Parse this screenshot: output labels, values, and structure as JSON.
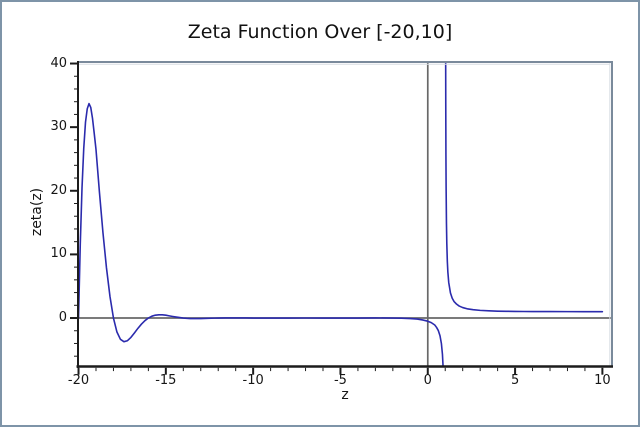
{
  "window": {
    "background": "#ffffff",
    "border_color": "#7e94a8"
  },
  "chart_data": {
    "type": "line",
    "title": "Zeta Function Over [-20,10]",
    "xlabel": "z",
    "ylabel": "zeta(z)",
    "xlim": [
      -20.03,
      10.55
    ],
    "ylim": [
      -7.62,
      40.24
    ],
    "grid": false,
    "legend": "none",
    "x_ticks": [
      -20,
      -15,
      -10,
      -5,
      0,
      5,
      10
    ],
    "x_tick_labels": [
      "-20",
      "-15",
      "-10",
      "-5",
      "0",
      "5",
      "10"
    ],
    "x_minor_step": 1,
    "y_ticks": [
      0,
      10,
      20,
      30,
      40
    ],
    "y_tick_labels": [
      "0",
      "10",
      "20",
      "30",
      "40"
    ],
    "y_minor_step": 2,
    "y_minor_min": -6,
    "zero_lines": true,
    "line_color": "#2b2bad",
    "axis_color": "#1c1c1c",
    "frame_color": "#7a8a9b",
    "frame_highlight": "#d9dee4",
    "zero_line_color": "#686868",
    "series": [
      {
        "name": "zeta(z)",
        "pole_at": 1,
        "segments": [
          [
            [
              -20.0,
              0.0
            ],
            [
              -19.9,
              11.6
            ],
            [
              -19.8,
              20.5
            ],
            [
              -19.7,
              26.7
            ],
            [
              -19.6,
              30.8
            ],
            [
              -19.5,
              32.9
            ],
            [
              -19.4,
              33.7
            ],
            [
              -19.3,
              33.1
            ],
            [
              -19.2,
              31.4
            ],
            [
              -19.1,
              29.0
            ],
            [
              -19.0,
              26.5
            ],
            [
              -18.8,
              19.7
            ],
            [
              -18.6,
              13.4
            ],
            [
              -18.4,
              7.9
            ],
            [
              -18.2,
              3.4
            ],
            [
              -18.0,
              0.0
            ],
            [
              -17.8,
              -2.2
            ],
            [
              -17.6,
              -3.35
            ],
            [
              -17.4,
              -3.72
            ],
            [
              -17.2,
              -3.57
            ],
            [
              -17.0,
              -3.05
            ],
            [
              -16.8,
              -2.35
            ],
            [
              -16.6,
              -1.62
            ],
            [
              -16.4,
              -0.97
            ],
            [
              -16.2,
              -0.42
            ],
            [
              -16.0,
              0.0
            ],
            [
              -15.8,
              0.29
            ],
            [
              -15.6,
              0.45
            ],
            [
              -15.4,
              0.51
            ],
            [
              -15.2,
              0.51
            ],
            [
              -15.0,
              0.44
            ],
            [
              -14.8,
              0.34
            ],
            [
              -14.6,
              0.24
            ],
            [
              -14.4,
              0.15
            ],
            [
              -14.2,
              0.07
            ],
            [
              -14.0,
              0.0
            ],
            [
              -13.8,
              -0.05
            ],
            [
              -13.6,
              -0.08
            ],
            [
              -13.4,
              -0.092
            ],
            [
              -13.2,
              -0.091
            ],
            [
              -13.0,
              -0.083
            ],
            [
              -12.6,
              -0.05
            ],
            [
              -12.2,
              -0.018
            ],
            [
              -12.0,
              0.0
            ],
            [
              -11.6,
              0.015
            ],
            [
              -11.0,
              0.021
            ],
            [
              -10.4,
              0.01
            ],
            [
              -10.0,
              0.0
            ],
            [
              -9.5,
              -0.006
            ],
            [
              -9.0,
              -0.008
            ],
            [
              -8.5,
              -0.005
            ],
            [
              -8.0,
              0.0
            ],
            [
              -7.0,
              0.004
            ],
            [
              -6.0,
              0.0
            ],
            [
              -5.0,
              -0.004
            ],
            [
              -4.0,
              0.0
            ],
            [
              -3.0,
              0.008
            ],
            [
              -2.0,
              0.0
            ],
            [
              -1.5,
              -0.03
            ],
            [
              -1.0,
              -0.083
            ],
            [
              -0.6,
              -0.17
            ],
            [
              -0.3,
              -0.3
            ],
            [
              0.0,
              -0.5
            ],
            [
              0.2,
              -0.72
            ],
            [
              0.4,
              -1.1
            ],
            [
              0.5,
              -1.46
            ],
            [
              0.6,
              -1.95
            ],
            [
              0.7,
              -2.78
            ],
            [
              0.78,
              -4.0
            ],
            [
              0.84,
              -5.7
            ],
            [
              0.88,
              -7.8
            ],
            [
              0.9,
              -9.4
            ]
          ],
          [
            [
              1.022,
              46.0
            ],
            [
              1.025,
              40.5
            ],
            [
              1.03,
              33.9
            ],
            [
              1.04,
              25.6
            ],
            [
              1.05,
              20.6
            ],
            [
              1.07,
              14.9
            ],
            [
              1.09,
              11.7
            ],
            [
              1.12,
              8.9
            ],
            [
              1.15,
              7.25
            ],
            [
              1.2,
              5.59
            ],
            [
              1.3,
              3.93
            ],
            [
              1.4,
              3.11
            ],
            [
              1.5,
              2.61
            ],
            [
              1.65,
              2.18
            ],
            [
              1.8,
              1.88
            ],
            [
              2.0,
              1.645
            ],
            [
              2.3,
              1.42
            ],
            [
              2.6,
              1.31
            ],
            [
              3.0,
              1.202
            ],
            [
              3.5,
              1.127
            ],
            [
              4.0,
              1.082
            ],
            [
              4.5,
              1.055
            ],
            [
              5.0,
              1.037
            ],
            [
              5.5,
              1.025
            ],
            [
              6.0,
              1.017
            ],
            [
              6.5,
              1.012
            ],
            [
              7.0,
              1.008
            ],
            [
              8.0,
              1.004
            ],
            [
              9.0,
              1.002
            ],
            [
              10.0,
              1.001
            ]
          ]
        ]
      }
    ]
  }
}
